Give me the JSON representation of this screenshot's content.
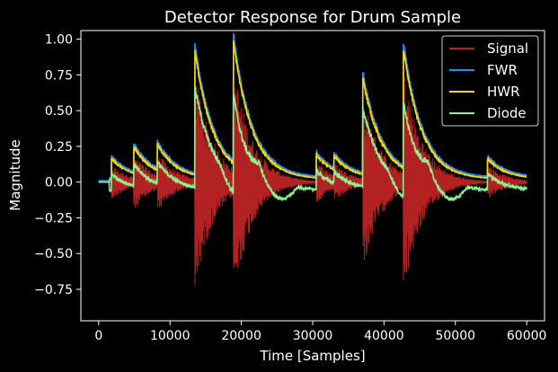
{
  "chart_data": {
    "type": "line",
    "title": "Detector Response for Drum Sample",
    "xlabel": "Time [Samples]",
    "ylabel": "Magnitude",
    "xlim": [
      -2500,
      62500
    ],
    "ylim": [
      -0.97,
      1.06
    ],
    "xticks": [
      0,
      10000,
      20000,
      30000,
      40000,
      50000,
      60000
    ],
    "xtick_labels": [
      "0",
      "10000",
      "20000",
      "30000",
      "40000",
      "50000",
      "60000"
    ],
    "yticks": [
      1.0,
      0.75,
      0.5,
      0.25,
      0.0,
      -0.25,
      -0.5,
      -0.75
    ],
    "ytick_labels": [
      "1.00",
      "0.75",
      "0.50",
      "0.25",
      "0.00",
      "−0.25",
      "−0.50",
      "−0.75"
    ],
    "grid": false,
    "legend_position": "top-right",
    "background": "#000000",
    "foreground": "#ffffff",
    "hits": [
      {
        "x": 1800,
        "peak": 0.15
      },
      {
        "x": 4900,
        "peak": 0.24
      },
      {
        "x": 8200,
        "peak": 0.26
      },
      {
        "x": 13500,
        "peak": 0.93
      },
      {
        "x": 18900,
        "peak": 1.0
      },
      {
        "x": 30500,
        "peak": 0.18
      },
      {
        "x": 33000,
        "peak": 0.17
      },
      {
        "x": 37000,
        "peak": 0.75
      },
      {
        "x": 42700,
        "peak": 0.96
      },
      {
        "x": 54500,
        "peak": 0.15
      }
    ],
    "series": [
      {
        "name": "Signal",
        "color": "#b22222"
      },
      {
        "name": "FWR",
        "color": "#1e90ff"
      },
      {
        "name": "HWR",
        "color": "#ffd700"
      },
      {
        "name": "Diode",
        "color": "#90ee90"
      }
    ]
  }
}
